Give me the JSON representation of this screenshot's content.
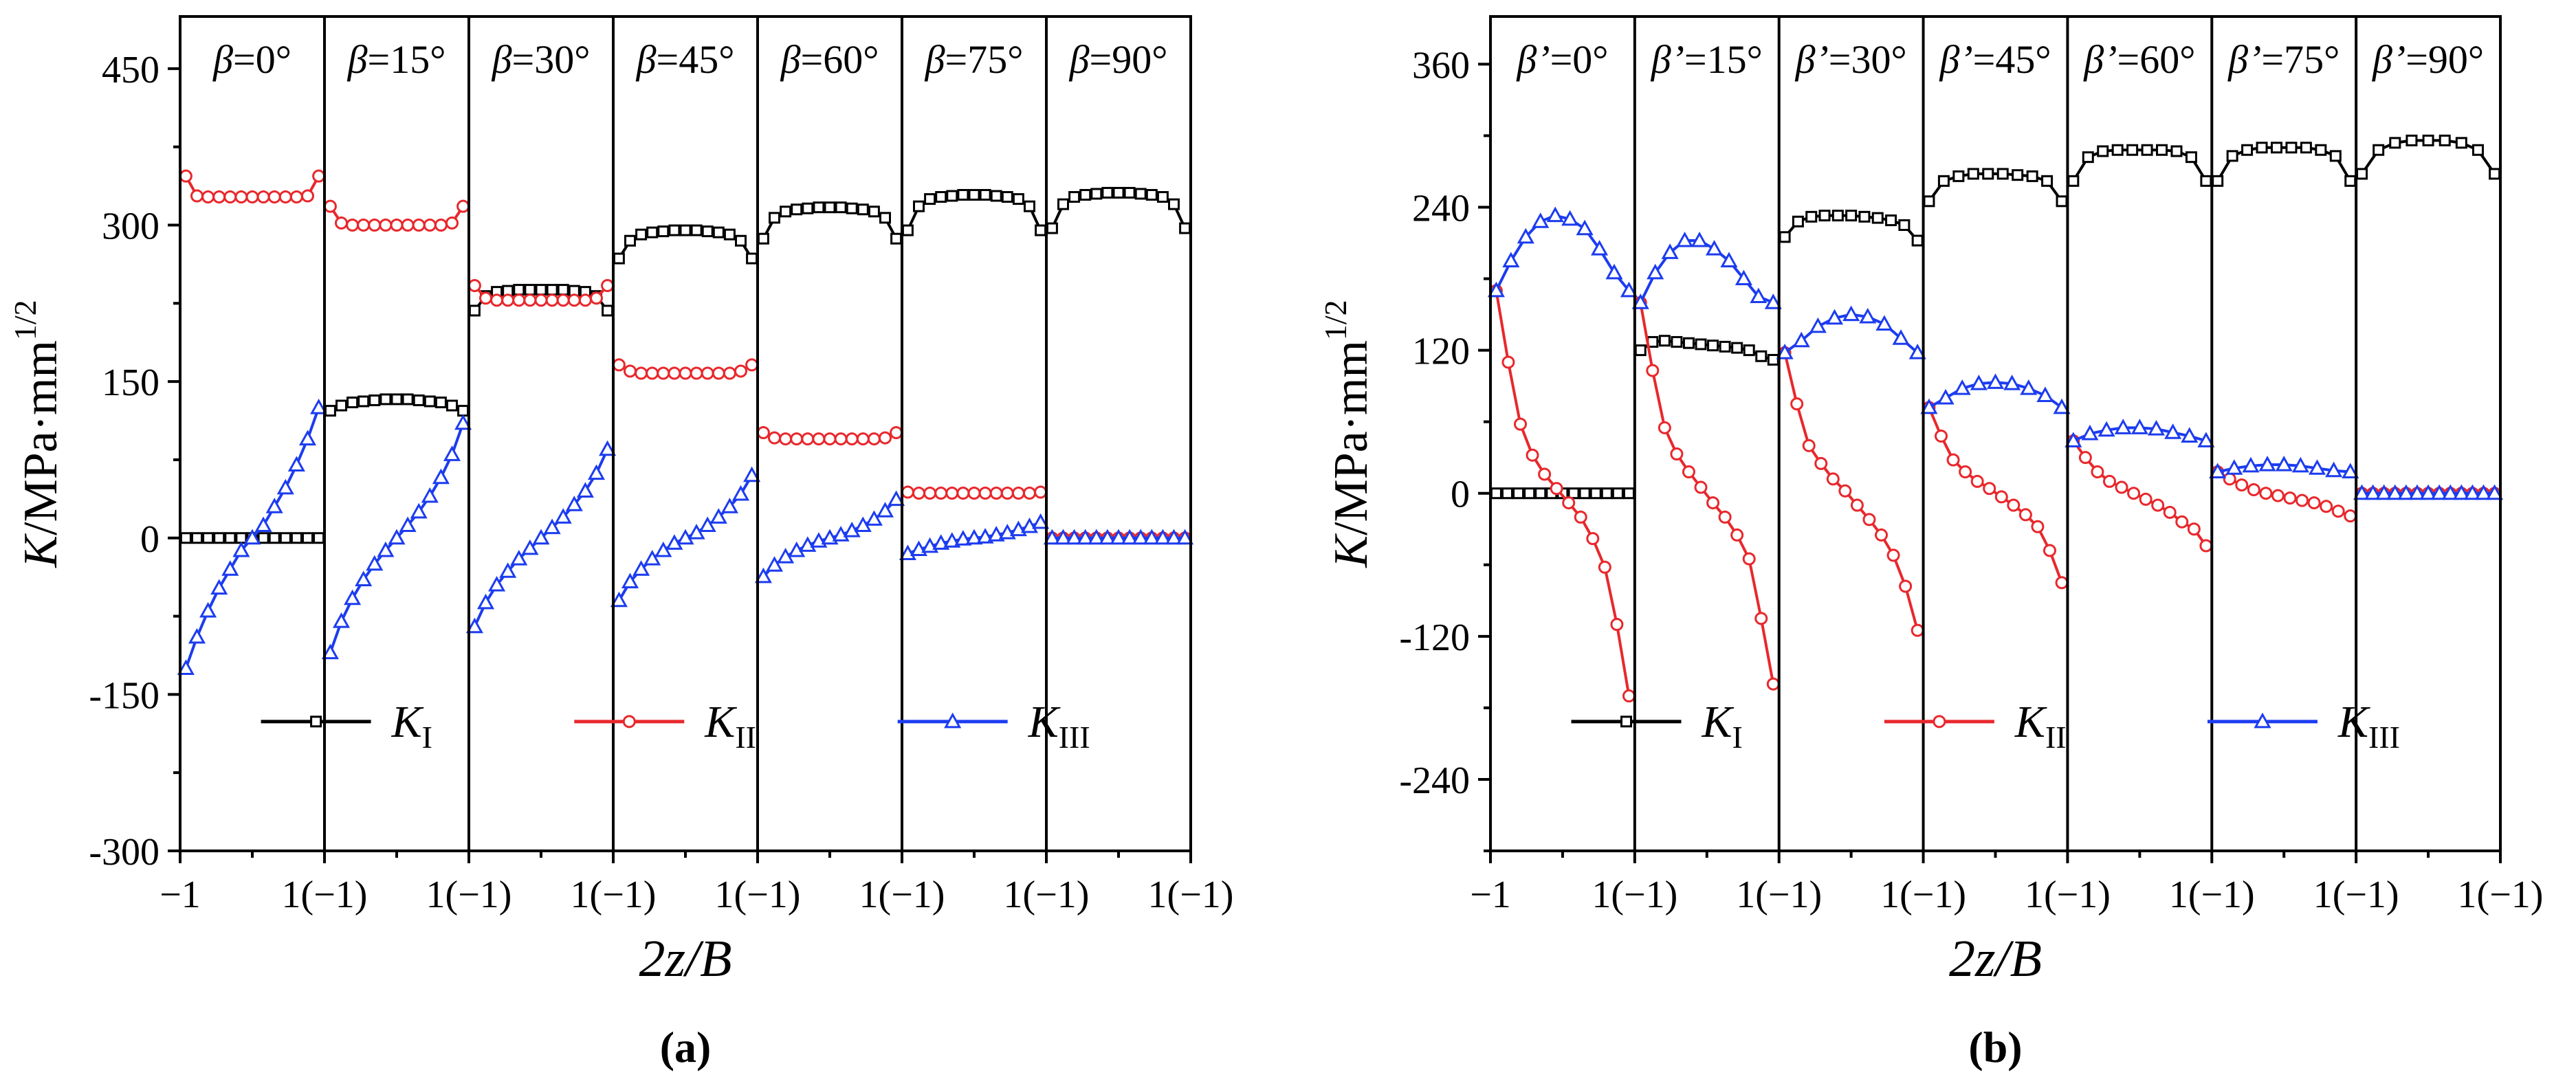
{
  "colors": {
    "KI": "#000000",
    "KII": "#e8282c",
    "KIII": "#1c3cf0",
    "axis": "#000000"
  },
  "legend_labels": {
    "KI": "K_I",
    "KII": "K_II",
    "KIII": "K_III"
  },
  "chart_data": [
    {
      "id": "a",
      "type": "line",
      "caption": "(a)",
      "xlabel": "2z/B",
      "ylabel": "K/MPa·mm^1/2",
      "ylim": [
        -300,
        500
      ],
      "yticks": [
        -300,
        -150,
        0,
        150,
        300,
        450
      ],
      "xtick_labels": [
        "−1",
        "1(−1)",
        "1(−1)",
        "1(−1)",
        "1(−1)",
        "1(−1)",
        "1(−1)",
        "1(−1)"
      ],
      "panel_symbol": "β",
      "panels": [
        {
          "label": "=0°",
          "KI": [
            0,
            0,
            0,
            0,
            0,
            0,
            0,
            0,
            0,
            0,
            0,
            0,
            0
          ],
          "KII": [
            347,
            328,
            327,
            327,
            327,
            327,
            327,
            327,
            327,
            327,
            327,
            328,
            347
          ],
          "KIII": [
            -125,
            -95,
            -70,
            -48,
            -30,
            -12,
            0,
            12,
            30,
            48,
            70,
            95,
            125
          ]
        },
        {
          "label": "=15°",
          "KI": [
            122,
            127,
            130,
            131,
            132,
            133,
            133,
            133,
            132,
            131,
            130,
            127,
            122
          ],
          "KII": [
            318,
            302,
            300,
            300,
            300,
            300,
            300,
            300,
            300,
            300,
            300,
            302,
            318
          ],
          "KIII": [
            -110,
            -80,
            -58,
            -40,
            -25,
            -12,
            0,
            12,
            25,
            40,
            58,
            80,
            110
          ]
        },
        {
          "label": "=30°",
          "KI": [
            218,
            232,
            236,
            237,
            238,
            238,
            238,
            238,
            238,
            237,
            236,
            232,
            218
          ],
          "KII": [
            242,
            230,
            228,
            228,
            228,
            228,
            228,
            228,
            228,
            228,
            228,
            230,
            242
          ],
          "KIII": [
            -85,
            -62,
            -45,
            -32,
            -20,
            -10,
            0,
            10,
            20,
            32,
            45,
            62,
            85
          ]
        },
        {
          "label": "=45°",
          "KI": [
            268,
            285,
            291,
            293,
            294,
            295,
            295,
            295,
            294,
            293,
            291,
            285,
            268
          ],
          "KII": [
            166,
            160,
            158,
            158,
            158,
            158,
            158,
            158,
            158,
            158,
            158,
            160,
            166
          ],
          "KIII": [
            -60,
            -42,
            -30,
            -20,
            -12,
            -5,
            0,
            5,
            12,
            20,
            30,
            42,
            60
          ]
        },
        {
          "label": "=60°",
          "KI": [
            287,
            307,
            313,
            315,
            316,
            317,
            317,
            317,
            316,
            315,
            313,
            307,
            287
          ],
          "KII": [
            101,
            96,
            95,
            95,
            95,
            95,
            95,
            95,
            95,
            95,
            95,
            96,
            101
          ],
          "KIII": [
            -37,
            -26,
            -18,
            -12,
            -7,
            -3,
            0,
            3,
            7,
            12,
            18,
            26,
            37
          ]
        },
        {
          "label": "=75°",
          "KI": [
            295,
            318,
            325,
            327,
            328,
            329,
            329,
            329,
            328,
            327,
            325,
            318,
            295
          ],
          "KII": [
            44,
            43,
            43,
            43,
            43,
            43,
            43,
            43,
            43,
            43,
            43,
            43,
            44
          ],
          "KIII": [
            -15,
            -11,
            -8,
            -5,
            -3,
            -1,
            0,
            1,
            3,
            5,
            8,
            11,
            15
          ]
        },
        {
          "label": "=90°",
          "KI": [
            297,
            320,
            327,
            329,
            330,
            331,
            331,
            331,
            330,
            329,
            327,
            320,
            297
          ],
          "KII": [
            0,
            0,
            0,
            0,
            0,
            0,
            0,
            0,
            0,
            0,
            0,
            0,
            0
          ],
          "KIII": [
            0,
            0,
            0,
            0,
            0,
            0,
            0,
            0,
            0,
            0,
            0,
            0,
            0
          ]
        }
      ]
    },
    {
      "id": "b",
      "type": "line",
      "caption": "(b)",
      "xlabel": "2z/B",
      "ylabel": "K/MPa·mm^1/2",
      "ylim": [
        -300,
        400
      ],
      "yticks": [
        -240,
        -120,
        0,
        120,
        240,
        360
      ],
      "xtick_labels": [
        "−1",
        "1(−1)",
        "1(−1)",
        "1(−1)",
        "1(−1)",
        "1(−1)",
        "1(−1)",
        "1(−1)"
      ],
      "panel_symbol": "β’",
      "panels": [
        {
          "label": "=0°",
          "KI": [
            0,
            0,
            0,
            0,
            0,
            0,
            0,
            0,
            0,
            0,
            0,
            0,
            0
          ],
          "KII": [
            170,
            110,
            58,
            32,
            16,
            4,
            -8,
            -20,
            -38,
            -62,
            -110,
            -170
          ],
          "KIII": [
            170,
            195,
            215,
            228,
            233,
            230,
            222,
            205,
            185,
            170
          ]
        },
        {
          "label": "=15°",
          "KI": [
            120,
            127,
            128,
            127,
            126,
            125,
            124,
            123,
            122,
            120,
            115,
            112
          ],
          "KII": [
            160,
            103,
            55,
            33,
            18,
            5,
            -8,
            -20,
            -35,
            -55,
            -105,
            -160
          ],
          "KIII": [
            160,
            185,
            202,
            212,
            212,
            205,
            195,
            180,
            165,
            160
          ]
        },
        {
          "label": "=30°",
          "KI": [
            215,
            228,
            232,
            233,
            233,
            233,
            232,
            231,
            229,
            225,
            212
          ],
          "KII": [
            118,
            75,
            40,
            25,
            12,
            2,
            -10,
            -22,
            -35,
            -52,
            -78,
            -115
          ],
          "KIII": [
            118,
            128,
            140,
            147,
            150,
            148,
            142,
            130,
            118
          ]
        },
        {
          "label": "=45°",
          "KI": [
            245,
            262,
            266,
            268,
            268,
            268,
            267,
            266,
            262,
            245
          ],
          "KII": [
            72,
            48,
            28,
            18,
            10,
            4,
            -3,
            -10,
            -18,
            -28,
            -48,
            -75
          ],
          "KIII": [
            72,
            80,
            88,
            92,
            93,
            92,
            88,
            82,
            72
          ]
        },
        {
          "label": "=60°",
          "KI": [
            262,
            282,
            287,
            288,
            288,
            288,
            288,
            287,
            282,
            262
          ],
          "KII": [
            44,
            30,
            18,
            10,
            5,
            0,
            -5,
            -10,
            -16,
            -24,
            -30,
            -44
          ],
          "KIII": [
            44,
            50,
            53,
            55,
            55,
            54,
            51,
            48,
            44
          ]
        },
        {
          "label": "=75°",
          "KI": [
            262,
            283,
            288,
            290,
            290,
            290,
            290,
            288,
            283,
            262
          ],
          "KII": [
            18,
            12,
            7,
            3,
            0,
            -2,
            -4,
            -6,
            -8,
            -11,
            -15,
            -19
          ],
          "KIII": [
            18,
            21,
            23,
            24,
            24,
            23,
            21,
            19,
            18
          ]
        },
        {
          "label": "=90°",
          "KI": [
            268,
            288,
            294,
            296,
            296,
            296,
            294,
            288,
            268
          ],
          "KII": [
            0,
            0,
            0,
            0,
            0,
            0,
            0,
            0,
            0,
            0,
            0,
            0,
            0
          ],
          "KIII": [
            0,
            0,
            0,
            0,
            0,
            0,
            0,
            0,
            0,
            0,
            0,
            0,
            0
          ]
        }
      ]
    }
  ]
}
